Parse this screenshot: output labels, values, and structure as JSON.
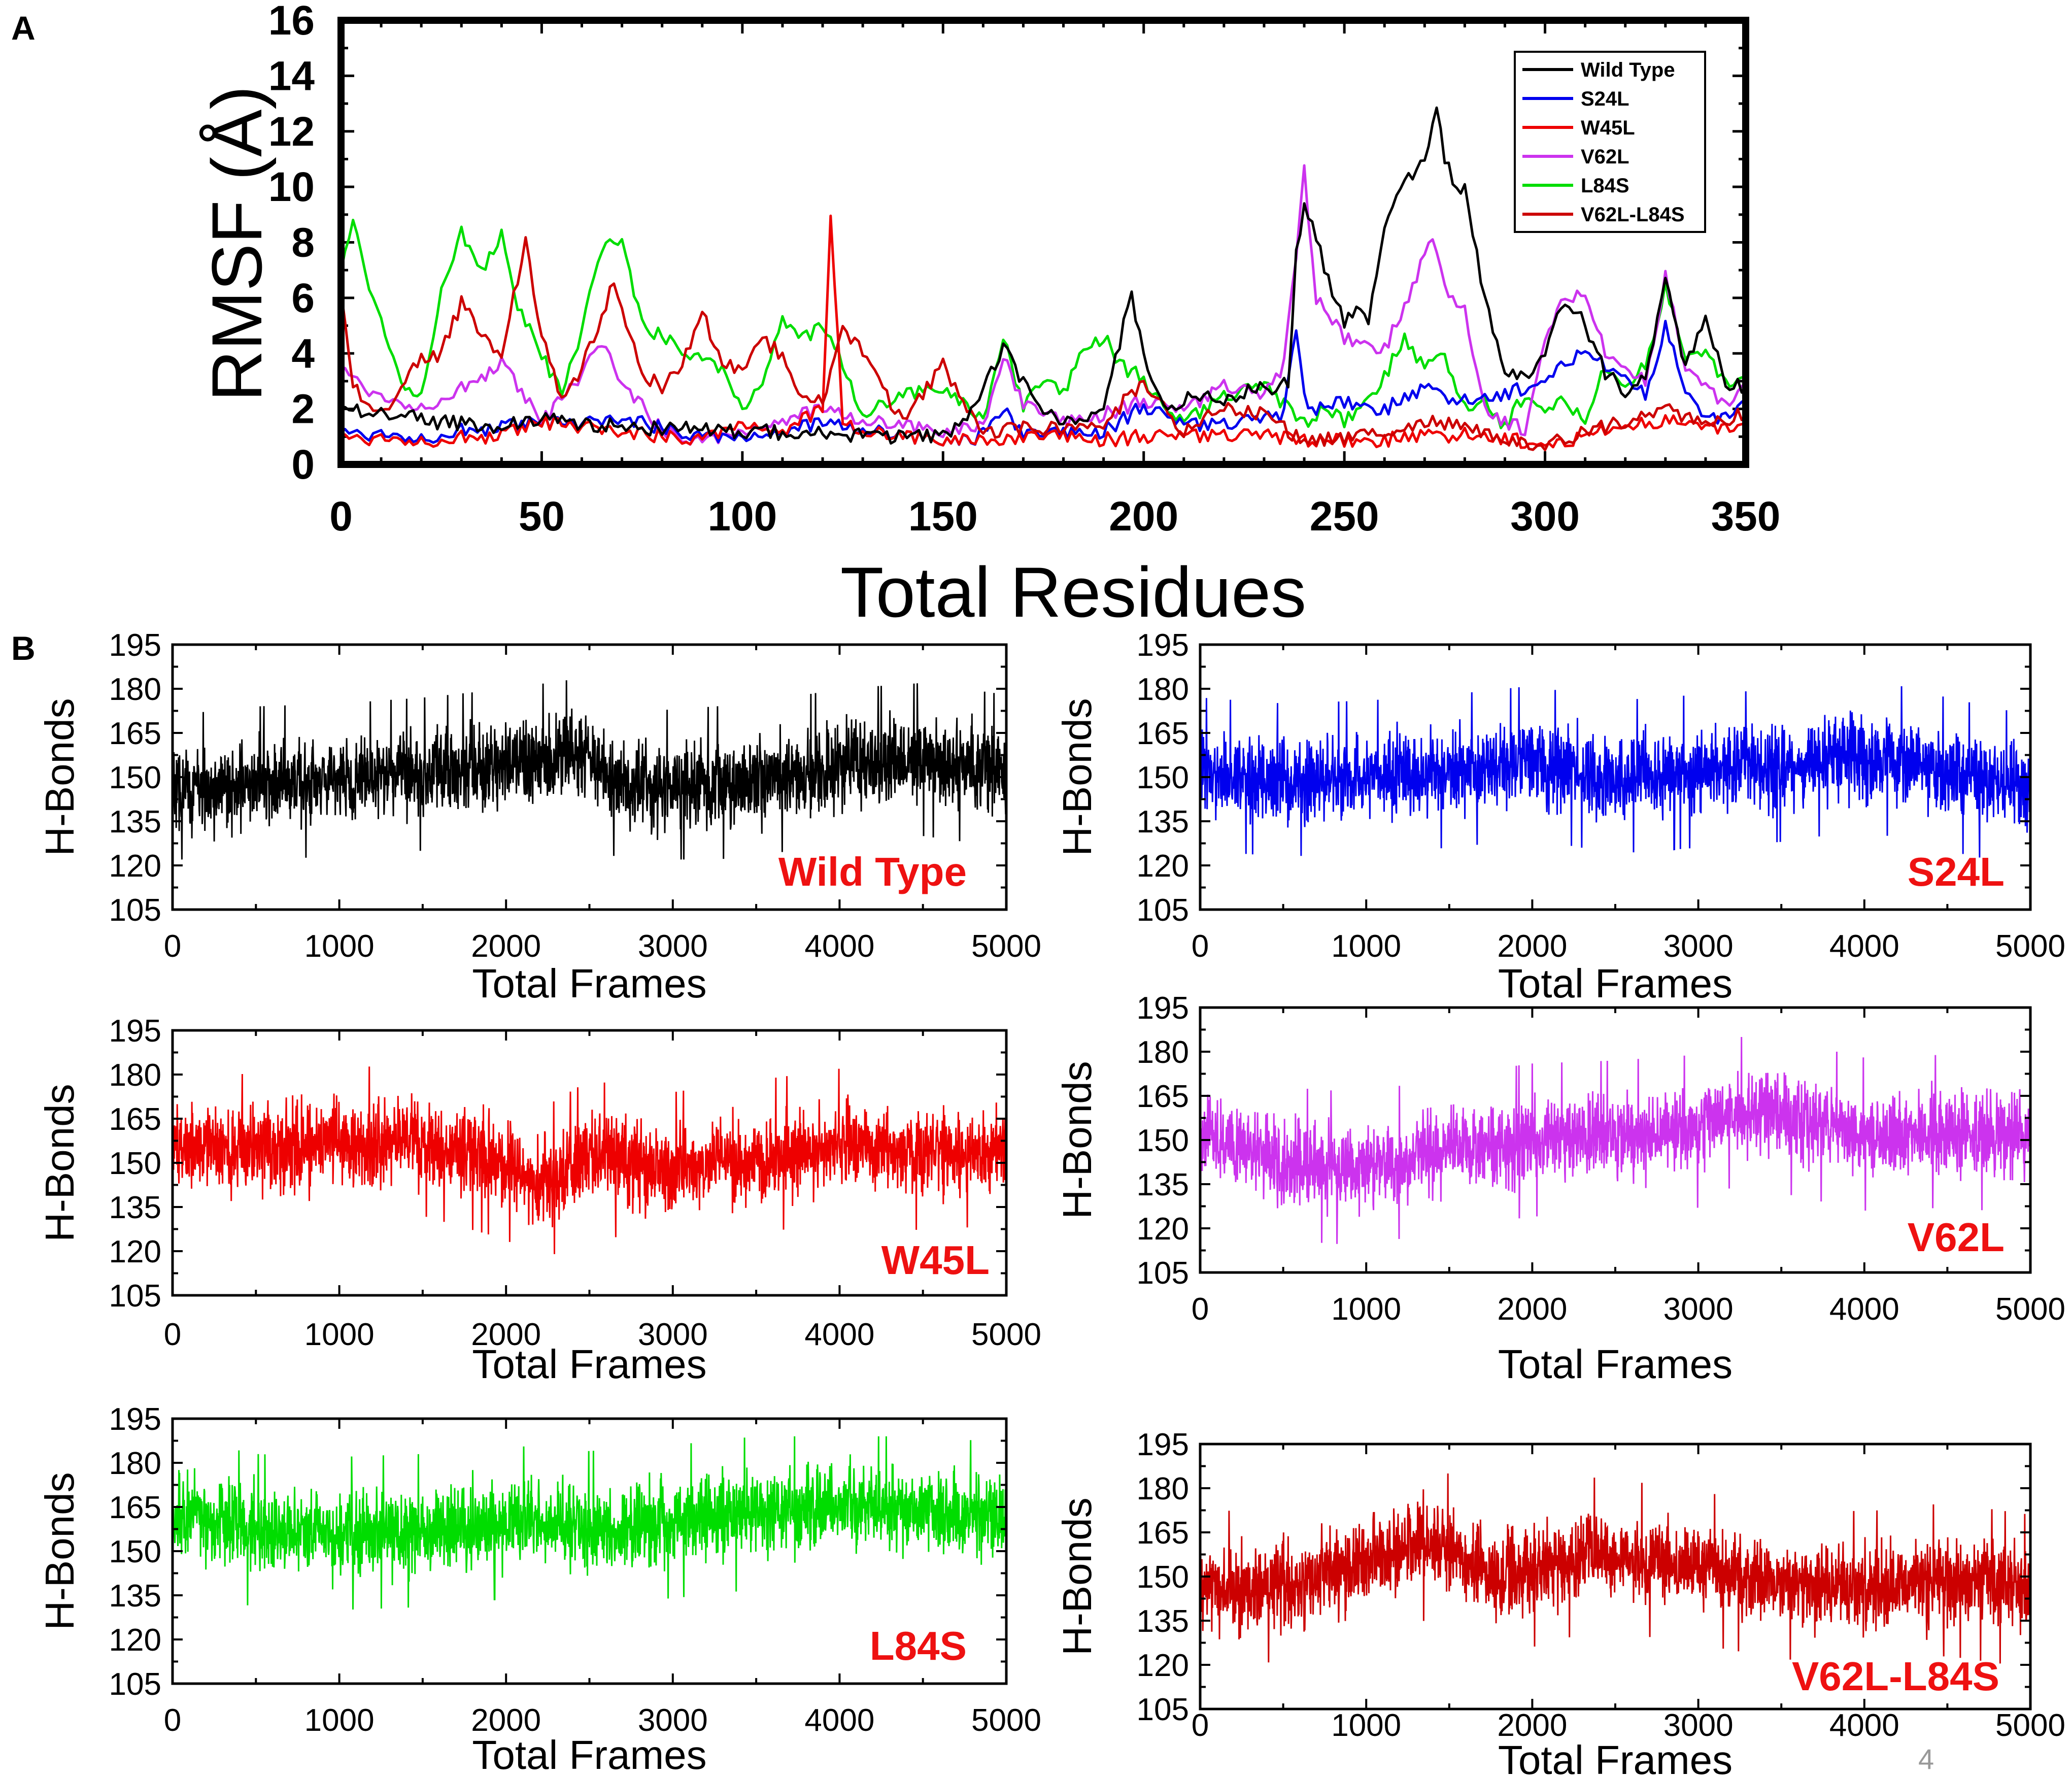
{
  "figure": {
    "panel_a_letter": "A",
    "panel_b_letter": "B",
    "page_number": "4"
  },
  "colors": {
    "Wild Type": "#000000",
    "S24L": "#0000ee",
    "W45L": "#ee0000",
    "V62L": "#cc33ee",
    "L84S": "#00dd00",
    "V62L-L84S": "#cc0000",
    "label_red": "#ee1111"
  },
  "chart_data": [
    {
      "id": "rmsf",
      "type": "line",
      "title": "",
      "xlabel": "Total Residues",
      "ylabel": "RMSF (Å)",
      "xlim": [
        0,
        350
      ],
      "ylim": [
        0,
        16
      ],
      "xticks": [
        0,
        50,
        100,
        150,
        200,
        250,
        300,
        350
      ],
      "yticks": [
        0,
        2,
        4,
        6,
        8,
        10,
        12,
        14,
        16
      ],
      "legend_position": "top-right",
      "legend": [
        "Wild Type",
        "S24L",
        "W45L",
        "V62L",
        "L84S",
        "V62L-L84S"
      ],
      "series": [
        {
          "name": "Wild Type",
          "x": [
            0,
            15,
            25,
            40,
            50,
            65,
            80,
            100,
            120,
            140,
            150,
            158,
            165,
            170,
            178,
            185,
            190,
            197,
            200,
            205,
            212,
            220,
            228,
            232,
            236,
            238,
            240,
            243,
            246,
            250,
            253,
            256,
            260,
            262,
            265,
            268,
            270,
            272,
            273,
            275,
            278,
            280,
            285,
            290,
            295,
            300,
            305,
            308,
            312,
            315,
            320,
            325,
            330,
            335,
            340,
            345,
            350
          ],
          "y": [
            2.0,
            1.8,
            1.5,
            1.4,
            1.6,
            1.4,
            1.3,
            1.2,
            1.1,
            1.0,
            1.0,
            2.0,
            4.2,
            3.0,
            1.5,
            1.5,
            2.2,
            6.1,
            4.0,
            2.0,
            2.5,
            2.2,
            2.8,
            2.5,
            3.0,
            7.5,
            9.3,
            8.2,
            6.6,
            5.2,
            5.6,
            5.1,
            8.7,
            9.5,
            10.4,
            10.6,
            11.2,
            12.1,
            13.0,
            11.1,
            9.8,
            10.0,
            6.0,
            3.5,
            3.2,
            4.1,
            5.9,
            5.6,
            4.3,
            3.3,
            2.6,
            3.1,
            6.6,
            3.5,
            5.2,
            3.0,
            2.8
          ]
        },
        {
          "name": "S24L",
          "x": [
            0,
            10,
            20,
            30,
            40,
            50,
            60,
            70,
            80,
            90,
            100,
            110,
            120,
            130,
            140,
            150,
            158,
            165,
            170,
            180,
            190,
            200,
            210,
            220,
            230,
            235,
            238,
            240,
            243,
            250,
            260,
            270,
            280,
            290,
            300,
            305,
            310,
            315,
            320,
            325,
            330,
            335,
            340,
            345,
            350
          ],
          "y": [
            1.2,
            1.1,
            1.0,
            1.2,
            1.3,
            1.5,
            1.4,
            1.7,
            1.3,
            1.1,
            1.0,
            1.2,
            1.5,
            1.3,
            1.0,
            0.9,
            0.8,
            2.0,
            1.0,
            1.1,
            1.2,
            2.1,
            1.5,
            1.4,
            1.6,
            1.8,
            5.0,
            2.4,
            2.0,
            2.2,
            2.0,
            2.7,
            2.3,
            2.5,
            3.1,
            3.8,
            4.0,
            3.5,
            3.2,
            2.5,
            5.0,
            2.6,
            1.6,
            1.8,
            2.4
          ]
        },
        {
          "name": "W45L",
          "x": [
            0,
            20,
            40,
            50,
            60,
            70,
            80,
            90,
            100,
            110,
            115,
            120,
            122,
            125,
            130,
            140,
            150,
            160,
            170,
            180,
            190,
            200,
            210,
            220,
            230,
            240,
            250,
            260,
            270,
            280,
            290,
            300,
            310,
            320,
            330,
            340,
            350
          ],
          "y": [
            1.0,
            0.9,
            1.0,
            1.5,
            1.3,
            1.2,
            1.0,
            1.0,
            1.5,
            1.2,
            1.6,
            2.0,
            8.8,
            1.6,
            1.2,
            1.0,
            0.9,
            0.8,
            0.9,
            1.0,
            0.9,
            1.0,
            1.1,
            1.0,
            1.0,
            0.9,
            0.8,
            0.9,
            1.0,
            1.1,
            0.9,
            0.8,
            1.0,
            1.4,
            1.6,
            1.3,
            1.5
          ]
        },
        {
          "name": "V62L",
          "x": [
            0,
            10,
            20,
            30,
            40,
            50,
            60,
            65,
            70,
            80,
            90,
            100,
            110,
            120,
            130,
            140,
            150,
            160,
            165,
            170,
            180,
            190,
            200,
            210,
            220,
            230,
            235,
            238,
            240,
            243,
            250,
            260,
            265,
            270,
            272,
            275,
            280,
            285,
            290,
            295,
            300,
            305,
            310,
            315,
            320,
            325,
            330,
            335,
            340,
            345,
            350
          ],
          "y": [
            3.5,
            2.4,
            2.1,
            2.7,
            3.6,
            1.5,
            3.2,
            4.4,
            3.0,
            1.2,
            0.9,
            1.2,
            1.6,
            2.0,
            1.6,
            1.4,
            1.2,
            1.3,
            3.9,
            2.1,
            1.5,
            1.8,
            2.3,
            2.0,
            2.8,
            2.4,
            3.6,
            7.6,
            10.6,
            6.0,
            4.5,
            4.2,
            5.6,
            7.5,
            8.0,
            6.5,
            5.5,
            2.0,
            1.5,
            1.3,
            4.6,
            6.2,
            6.0,
            4.0,
            3.5,
            3.0,
            6.8,
            3.4,
            2.8,
            2.2,
            3.0
          ]
        },
        {
          "name": "L84S",
          "x": [
            0,
            3,
            8,
            15,
            20,
            25,
            30,
            35,
            40,
            43,
            48,
            55,
            60,
            65,
            70,
            75,
            85,
            95,
            100,
            105,
            110,
            115,
            120,
            125,
            130,
            140,
            150,
            160,
            165,
            170,
            175,
            180,
            185,
            190,
            195,
            200,
            205,
            210,
            220,
            230,
            240,
            245,
            250,
            255,
            260,
            265,
            270,
            275,
            280,
            285,
            290,
            295,
            300,
            305,
            310,
            315,
            320,
            325,
            330,
            335,
            340,
            345,
            350
          ],
          "y": [
            7.0,
            8.8,
            6.0,
            3.0,
            2.5,
            6.4,
            8.3,
            7.0,
            8.2,
            6.0,
            4.5,
            2.5,
            4.8,
            7.8,
            8.2,
            5.0,
            4.2,
            3.5,
            2.0,
            3.0,
            5.3,
            4.5,
            5.0,
            3.6,
            1.8,
            2.5,
            2.8,
            1.5,
            4.6,
            2.0,
            3.0,
            2.5,
            4.2,
            4.6,
            3.5,
            3.1,
            2.0,
            1.6,
            2.4,
            2.8,
            1.5,
            2.0,
            1.5,
            2.2,
            3.2,
            4.5,
            3.4,
            4.0,
            2.0,
            2.3,
            1.3,
            2.6,
            2.0,
            2.5,
            1.4,
            3.5,
            2.8,
            3.6,
            6.4,
            3.8,
            4.0,
            3.0,
            3.2
          ]
        },
        {
          "name": "V62L-L84S",
          "x": [
            0,
            3,
            10,
            20,
            25,
            30,
            35,
            40,
            46,
            50,
            55,
            60,
            65,
            68,
            75,
            80,
            85,
            90,
            95,
            100,
            105,
            110,
            115,
            120,
            125,
            130,
            140,
            145,
            150,
            160,
            170,
            180,
            190,
            200,
            210,
            220,
            230,
            240,
            250,
            260,
            270,
            280,
            290,
            300,
            305,
            310,
            320,
            330,
            340,
            350
          ],
          "y": [
            6.2,
            2.8,
            1.8,
            3.8,
            4.0,
            5.8,
            4.8,
            4.0,
            8.0,
            4.6,
            2.2,
            3.5,
            5.4,
            6.5,
            3.3,
            2.8,
            3.5,
            5.5,
            3.5,
            3.6,
            4.4,
            4.0,
            2.4,
            2.2,
            5.0,
            4.0,
            1.5,
            2.5,
            3.6,
            1.0,
            1.4,
            1.2,
            1.5,
            3.0,
            1.2,
            2.0,
            1.8,
            0.8,
            1.0,
            1.2,
            1.6,
            1.4,
            1.0,
            0.7,
            0.9,
            1.2,
            1.5,
            2.0,
            1.4,
            1.9
          ]
        }
      ]
    },
    {
      "id": "hb_wt",
      "type": "line",
      "label": "Wild Type",
      "color_key": "Wild Type",
      "xlabel": "Total Frames",
      "ylabel": "H-Bonds",
      "xlim": [
        0,
        5000
      ],
      "ylim": [
        105,
        195
      ],
      "xticks": [
        0,
        1000,
        2000,
        3000,
        4000,
        5000
      ],
      "yticks": [
        105,
        120,
        135,
        150,
        165,
        180,
        195
      ],
      "trend_x": [
        0,
        500,
        1000,
        1500,
        2000,
        2500,
        2600,
        2700,
        3000,
        3500,
        4000,
        4500,
        5000
      ],
      "trend_y": [
        145,
        148,
        149,
        151,
        154,
        158,
        152,
        146,
        147,
        149,
        154,
        156,
        152
      ],
      "spread": 10,
      "max": 187,
      "min": 122
    },
    {
      "id": "hb_s24l",
      "type": "line",
      "label": "S24L",
      "color_key": "S24L",
      "xlabel": "Total Frames",
      "ylabel": "H-Bonds",
      "xlim": [
        0,
        5000
      ],
      "ylim": [
        105,
        195
      ],
      "xticks": [
        0,
        1000,
        2000,
        3000,
        4000,
        5000
      ],
      "yticks": [
        105,
        120,
        135,
        150,
        165,
        180,
        195
      ],
      "trend_x": [
        0,
        500,
        1000,
        1500,
        2000,
        2500,
        3000,
        3500,
        4000,
        4500,
        5000
      ],
      "trend_y": [
        151,
        149,
        150,
        152,
        155,
        150,
        152,
        154,
        158,
        151,
        145
      ],
      "spread": 10,
      "max": 183,
      "min": 117
    },
    {
      "id": "hb_w45l",
      "type": "line",
      "label": "W45L",
      "color_key": "W45L",
      "xlabel": "Total Frames",
      "ylabel": "H-Bonds",
      "xlim": [
        0,
        5000
      ],
      "ylim": [
        105,
        195
      ],
      "xticks": [
        0,
        1000,
        2000,
        3000,
        4000,
        5000
      ],
      "yticks": [
        105,
        120,
        135,
        150,
        165,
        180,
        195
      ],
      "trend_x": [
        0,
        500,
        1000,
        1500,
        2000,
        2200,
        2500,
        3000,
        3500,
        4000,
        4500,
        5000
      ],
      "trend_y": [
        155,
        154,
        156,
        158,
        150,
        142,
        152,
        148,
        152,
        156,
        153,
        155
      ],
      "spread": 10,
      "max": 185,
      "min": 118
    },
    {
      "id": "hb_v62l",
      "type": "line",
      "label": "V62L",
      "color_key": "V62L",
      "xlabel": "Total Frames",
      "ylabel": "H-Bonds",
      "xlim": [
        0,
        5000
      ],
      "ylim": [
        105,
        195
      ],
      "xticks": [
        0,
        1000,
        2000,
        3000,
        4000,
        5000
      ],
      "yticks": [
        105,
        120,
        135,
        150,
        165,
        180,
        195
      ],
      "trend_x": [
        0,
        500,
        1000,
        1500,
        2000,
        2500,
        3000,
        3200,
        3500,
        4000,
        4500,
        5000
      ],
      "trend_y": [
        153,
        142,
        140,
        146,
        150,
        151,
        153,
        160,
        158,
        152,
        153,
        151
      ],
      "spread": 10,
      "max": 185,
      "min": 112
    },
    {
      "id": "hb_l84s",
      "type": "line",
      "label": "L84S",
      "color_key": "L84S",
      "xlabel": "Total Frames",
      "ylabel": "H-Bonds",
      "xlim": [
        0,
        5000
      ],
      "ylim": [
        105,
        195
      ],
      "xticks": [
        0,
        1000,
        2000,
        3000,
        4000,
        5000
      ],
      "yticks": [
        105,
        120,
        135,
        150,
        165,
        180,
        195
      ],
      "trend_x": [
        0,
        500,
        1000,
        1500,
        2000,
        2500,
        3000,
        3500,
        4000,
        4500,
        5000
      ],
      "trend_y": [
        163,
        157,
        156,
        157,
        160,
        158,
        160,
        163,
        165,
        164,
        160
      ],
      "spread": 10,
      "max": 189,
      "min": 130
    },
    {
      "id": "hb_v62l_l84s",
      "type": "line",
      "label": "V62L-L84S",
      "color_key": "V62L-L84S",
      "xlabel": "Total Frames",
      "ylabel": "H-Bonds",
      "xlim": [
        0,
        5000
      ],
      "ylim": [
        105,
        195
      ],
      "xticks": [
        0,
        1000,
        2000,
        3000,
        4000,
        5000
      ],
      "yticks": [
        105,
        120,
        135,
        150,
        165,
        180,
        195
      ],
      "trend_x": [
        0,
        500,
        1000,
        1400,
        1800,
        2000,
        2400,
        3000,
        3500,
        4000,
        4500,
        5000
      ],
      "trend_y": [
        146,
        147,
        154,
        162,
        150,
        152,
        158,
        153,
        148,
        146,
        149,
        145
      ],
      "spread": 10,
      "max": 185,
      "min": 118
    }
  ]
}
